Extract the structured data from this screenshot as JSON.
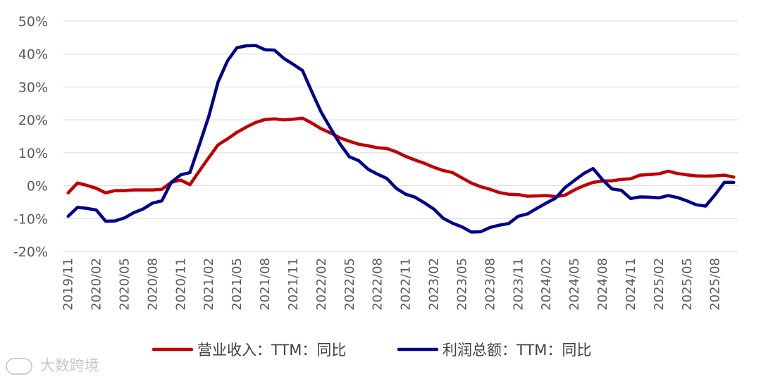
{
  "chart_data": {
    "type": "line",
    "title": "",
    "xlabel": "",
    "ylabel": "",
    "ylim": [
      -20,
      50
    ],
    "yticks": [
      "-20%",
      "-10%",
      "0%",
      "10%",
      "20%",
      "30%",
      "40%",
      "50%"
    ],
    "grid": true,
    "legend": "bottom",
    "x": [
      "2019/11",
      "2019/12",
      "2020/01",
      "2020/02",
      "2020/03",
      "2020/04",
      "2020/05",
      "2020/06",
      "2020/07",
      "2020/08",
      "2020/09",
      "2020/10",
      "2020/11",
      "2020/12",
      "2021/01",
      "2021/02",
      "2021/03",
      "2021/04",
      "2021/05",
      "2021/06",
      "2021/07",
      "2021/08",
      "2021/09",
      "2021/10",
      "2021/11",
      "2021/12",
      "2022/01",
      "2022/02",
      "2022/03",
      "2022/04",
      "2022/05",
      "2022/06",
      "2022/07",
      "2022/08",
      "2022/09",
      "2022/10",
      "2022/11",
      "2022/12",
      "2023/01",
      "2023/02",
      "2023/03",
      "2023/04",
      "2023/05",
      "2023/06",
      "2023/07",
      "2023/08",
      "2023/09",
      "2023/10",
      "2023/11",
      "2023/12",
      "2024/01",
      "2024/02",
      "2024/03",
      "2024/04",
      "2024/05",
      "2024/06",
      "2024/07",
      "2024/08",
      "2024/09",
      "2024/10",
      "2024/11",
      "2024/12",
      "2025/01",
      "2025/02",
      "2025/03",
      "2025/04",
      "2025/05",
      "2025/06",
      "2025/07",
      "2025/08",
      "2025/09",
      "2025/10"
    ],
    "xticks_shown": [
      "2019/11",
      "2020/02",
      "2020/05",
      "2020/08",
      "2020/11",
      "2021/02",
      "2021/05",
      "2021/08",
      "2021/11",
      "2022/02",
      "2022/05",
      "2022/08",
      "2022/11",
      "2023/02",
      "2023/05",
      "2023/08",
      "2023/11",
      "2024/02",
      "2024/05",
      "2024/08",
      "2024/11",
      "2025/02",
      "2025/05",
      "2025/08"
    ],
    "series": [
      {
        "name": "营业收入：TTM：同比",
        "color": "#c00000",
        "values": [
          -2.2,
          0.8,
          0.1,
          -0.8,
          -2.2,
          -1.5,
          -1.5,
          -1.3,
          -1.3,
          -1.3,
          -1.1,
          1.0,
          1.7,
          0.3,
          4.5,
          8.5,
          12.4,
          14.2,
          16.2,
          17.8,
          19.2,
          20.1,
          20.3,
          20.0,
          20.2,
          20.5,
          19.0,
          17.3,
          16.0,
          14.5,
          13.5,
          12.6,
          12.1,
          11.5,
          11.3,
          10.3,
          8.9,
          7.8,
          6.8,
          5.6,
          4.6,
          4.0,
          2.4,
          0.8,
          -0.3,
          -1.1,
          -2.1,
          -2.6,
          -2.7,
          -3.2,
          -3.1,
          -3.0,
          -3.3,
          -2.9,
          -1.3,
          0.0,
          1.0,
          1.4,
          1.5,
          1.9,
          2.1,
          3.2,
          3.4,
          3.6,
          4.4,
          3.7,
          3.3,
          3.0,
          2.9,
          3.0,
          3.2,
          2.6
        ]
      },
      {
        "name": "利润总额：TTM：同比",
        "color": "#00008b",
        "values": [
          -9.3,
          -6.6,
          -6.9,
          -7.4,
          -10.8,
          -10.7,
          -9.8,
          -8.2,
          -7.1,
          -5.3,
          -4.6,
          1.0,
          3.3,
          4.0,
          12.4,
          21.0,
          31.5,
          37.9,
          41.9,
          42.5,
          42.6,
          41.3,
          41.2,
          38.7,
          36.9,
          35.0,
          28.5,
          22.3,
          17.4,
          12.7,
          8.8,
          7.6,
          5.0,
          3.5,
          2.2,
          -0.8,
          -2.6,
          -3.5,
          -5.2,
          -7.1,
          -9.9,
          -11.4,
          -12.5,
          -14.1,
          -14.0,
          -12.7,
          -12.0,
          -11.5,
          -9.3,
          -8.6,
          -6.9,
          -5.3,
          -3.8,
          -0.6,
          1.6,
          3.7,
          5.2,
          1.8,
          -1.0,
          -1.4,
          -3.9,
          -3.4,
          -3.5,
          -3.7,
          -3.0,
          -3.6,
          -4.6,
          -5.8,
          -6.2,
          -2.8,
          1.0,
          1.0
        ]
      }
    ]
  },
  "watermark": {
    "text": "大数跨境",
    "icon": "logo-icon"
  }
}
